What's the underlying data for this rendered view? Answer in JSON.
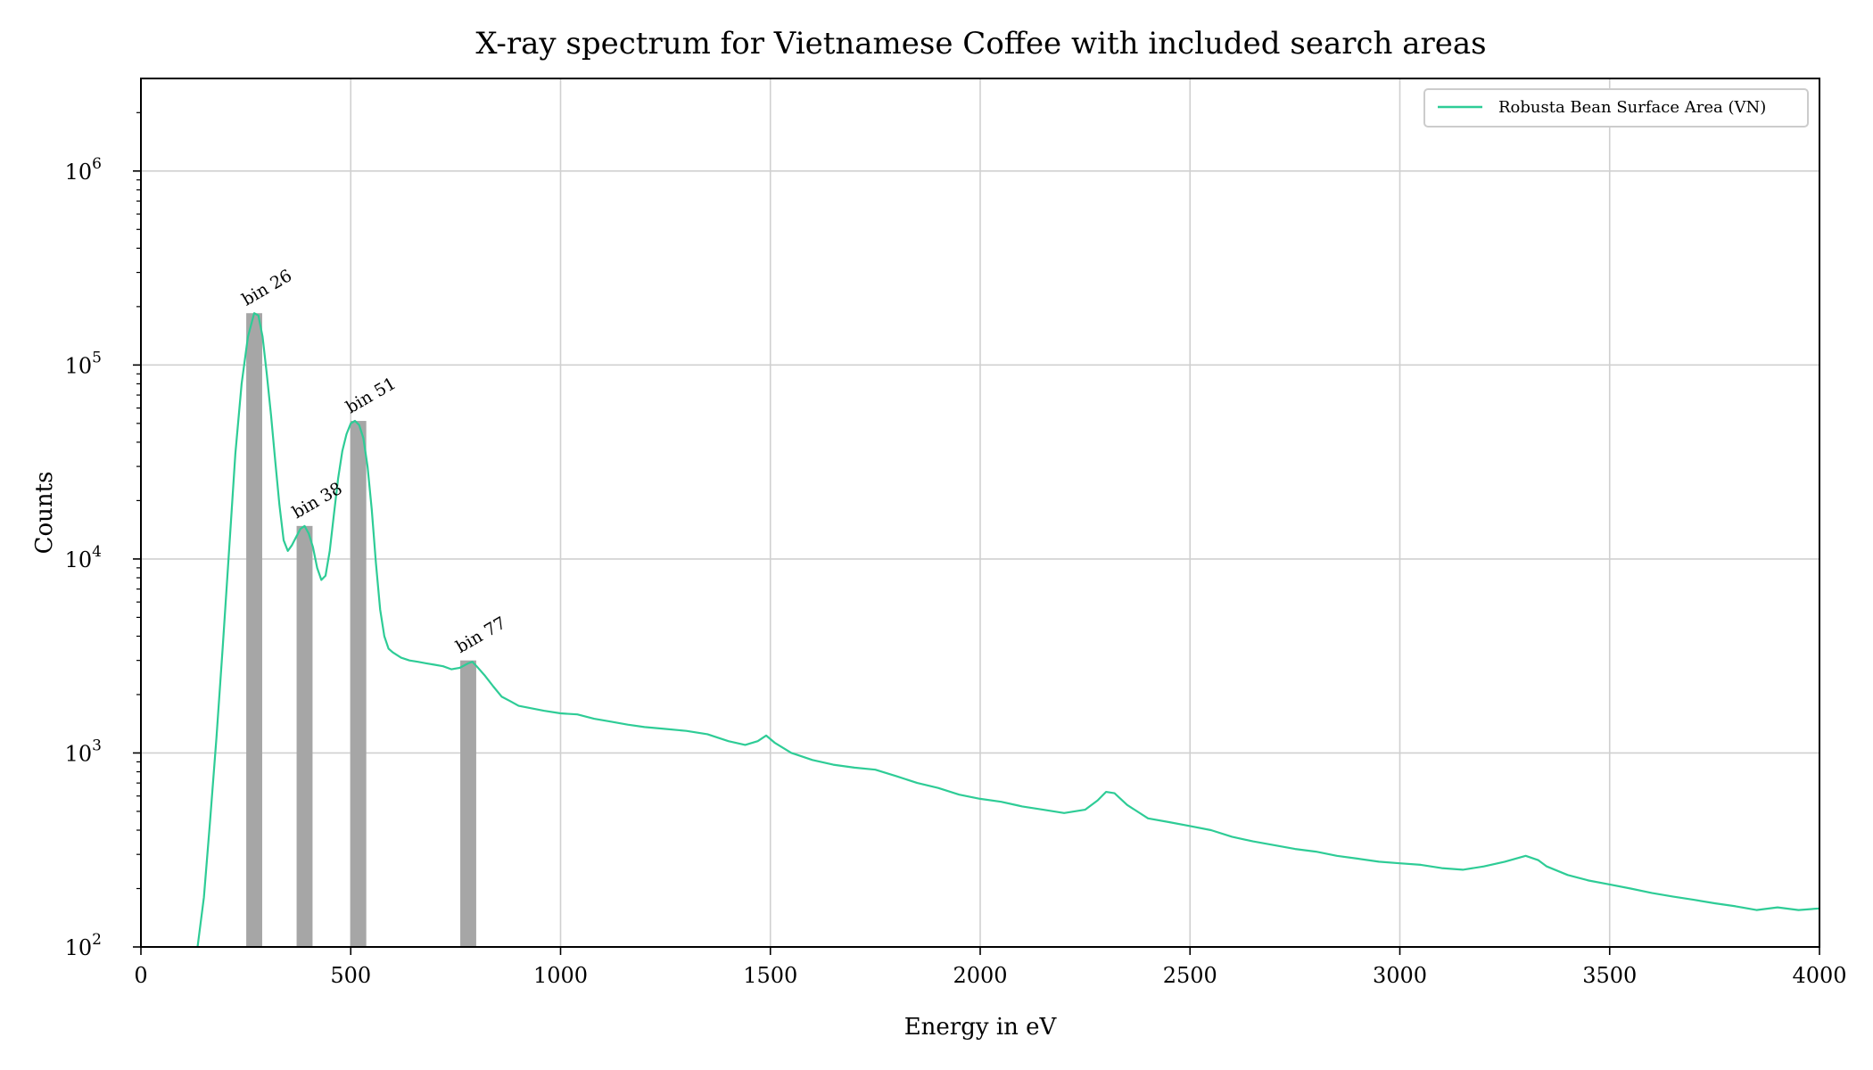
{
  "chart_data": {
    "type": "line",
    "title": "X-ray spectrum for Vietnamese Coffee with included search areas",
    "xlabel": "Energy in eV",
    "ylabel": "Counts",
    "xlim": [
      0,
      4000
    ],
    "ylim": [
      100,
      3000000
    ],
    "yscale": "log",
    "grid": true,
    "legend_position": "upper right",
    "x_ticks": [
      0,
      500,
      1000,
      1500,
      2000,
      2500,
      3000,
      3500,
      4000
    ],
    "y_ticks": [
      {
        "value": 100,
        "base": "10",
        "exp": "2"
      },
      {
        "value": 1000,
        "base": "10",
        "exp": "3"
      },
      {
        "value": 10000,
        "base": "10",
        "exp": "4"
      },
      {
        "value": 100000,
        "base": "10",
        "exp": "5"
      },
      {
        "value": 1000000,
        "base": "10",
        "exp": "6"
      }
    ],
    "series": [
      {
        "name": "Robusta Bean Surface Area (VN)",
        "color": "#2ecc96",
        "points": [
          [
            135,
            100
          ],
          [
            150,
            180
          ],
          [
            165,
            450
          ],
          [
            180,
            1200
          ],
          [
            195,
            3500
          ],
          [
            210,
            11000
          ],
          [
            225,
            35000
          ],
          [
            240,
            80000
          ],
          [
            255,
            140000
          ],
          [
            270,
            185000
          ],
          [
            280,
            180000
          ],
          [
            290,
            140000
          ],
          [
            300,
            90000
          ],
          [
            310,
            55000
          ],
          [
            320,
            32000
          ],
          [
            330,
            19000
          ],
          [
            340,
            12500
          ],
          [
            350,
            11000
          ],
          [
            360,
            11800
          ],
          [
            370,
            13000
          ],
          [
            380,
            14300
          ],
          [
            390,
            14800
          ],
          [
            400,
            13500
          ],
          [
            410,
            11500
          ],
          [
            420,
            9000
          ],
          [
            430,
            7800
          ],
          [
            440,
            8200
          ],
          [
            450,
            11000
          ],
          [
            460,
            17000
          ],
          [
            470,
            26000
          ],
          [
            480,
            36000
          ],
          [
            490,
            44000
          ],
          [
            500,
            50000
          ],
          [
            510,
            51500
          ],
          [
            520,
            49000
          ],
          [
            530,
            42000
          ],
          [
            540,
            30000
          ],
          [
            550,
            18000
          ],
          [
            560,
            9500
          ],
          [
            570,
            5500
          ],
          [
            580,
            4000
          ],
          [
            590,
            3450
          ],
          [
            600,
            3300
          ],
          [
            610,
            3200
          ],
          [
            620,
            3100
          ],
          [
            640,
            3000
          ],
          [
            660,
            2950
          ],
          [
            680,
            2900
          ],
          [
            700,
            2850
          ],
          [
            720,
            2800
          ],
          [
            740,
            2700
          ],
          [
            760,
            2750
          ],
          [
            780,
            2900
          ],
          [
            790,
            2950
          ],
          [
            800,
            2800
          ],
          [
            820,
            2500
          ],
          [
            840,
            2200
          ],
          [
            860,
            1950
          ],
          [
            880,
            1850
          ],
          [
            900,
            1750
          ],
          [
            930,
            1700
          ],
          [
            960,
            1650
          ],
          [
            1000,
            1600
          ],
          [
            1040,
            1580
          ],
          [
            1080,
            1500
          ],
          [
            1120,
            1450
          ],
          [
            1160,
            1400
          ],
          [
            1200,
            1360
          ],
          [
            1250,
            1330
          ],
          [
            1300,
            1300
          ],
          [
            1350,
            1250
          ],
          [
            1400,
            1150
          ],
          [
            1440,
            1100
          ],
          [
            1470,
            1150
          ],
          [
            1490,
            1230
          ],
          [
            1510,
            1130
          ],
          [
            1550,
            1000
          ],
          [
            1600,
            920
          ],
          [
            1650,
            870
          ],
          [
            1700,
            840
          ],
          [
            1750,
            820
          ],
          [
            1800,
            760
          ],
          [
            1850,
            700
          ],
          [
            1900,
            660
          ],
          [
            1950,
            610
          ],
          [
            2000,
            580
          ],
          [
            2050,
            560
          ],
          [
            2100,
            530
          ],
          [
            2150,
            510
          ],
          [
            2200,
            490
          ],
          [
            2250,
            510
          ],
          [
            2280,
            570
          ],
          [
            2300,
            630
          ],
          [
            2320,
            620
          ],
          [
            2350,
            540
          ],
          [
            2400,
            460
          ],
          [
            2450,
            440
          ],
          [
            2500,
            420
          ],
          [
            2550,
            400
          ],
          [
            2600,
            370
          ],
          [
            2650,
            350
          ],
          [
            2700,
            335
          ],
          [
            2750,
            320
          ],
          [
            2800,
            310
          ],
          [
            2850,
            295
          ],
          [
            2900,
            285
          ],
          [
            2950,
            275
          ],
          [
            3000,
            270
          ],
          [
            3050,
            265
          ],
          [
            3100,
            255
          ],
          [
            3150,
            250
          ],
          [
            3200,
            260
          ],
          [
            3250,
            275
          ],
          [
            3300,
            295
          ],
          [
            3330,
            280
          ],
          [
            3350,
            260
          ],
          [
            3400,
            235
          ],
          [
            3450,
            220
          ],
          [
            3500,
            210
          ],
          [
            3550,
            200
          ],
          [
            3600,
            190
          ],
          [
            3650,
            182
          ],
          [
            3700,
            175
          ],
          [
            3750,
            168
          ],
          [
            3800,
            162
          ],
          [
            3850,
            155
          ],
          [
            3900,
            160
          ],
          [
            3950,
            155
          ],
          [
            4000,
            158
          ]
        ]
      }
    ],
    "search_bins": [
      {
        "label": "bin 26",
        "x_center": 270,
        "width": 38,
        "top": 185000
      },
      {
        "label": "bin 38",
        "x_center": 390,
        "width": 38,
        "top": 14800
      },
      {
        "label": "bin 51",
        "x_center": 518,
        "width": 38,
        "top": 51500
      },
      {
        "label": "bin 77",
        "x_center": 780,
        "width": 38,
        "top": 3000
      }
    ],
    "bar_color": "#a6a6a6",
    "grid_color": "#d0d0d0"
  }
}
